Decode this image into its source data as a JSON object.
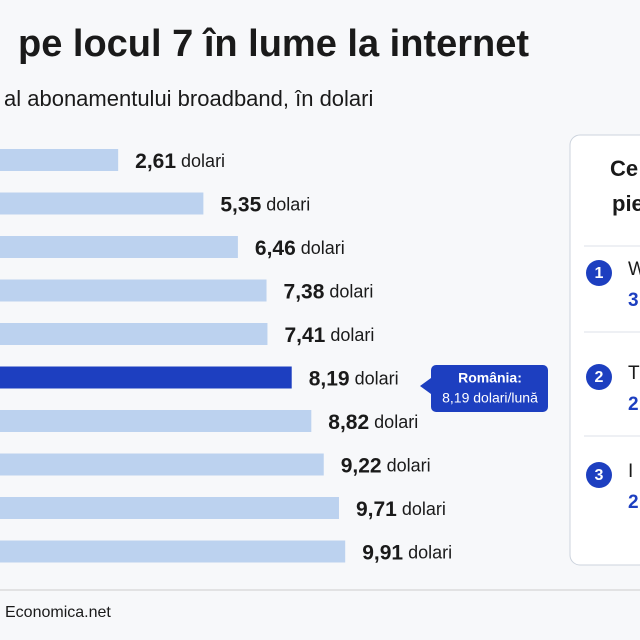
{
  "chart_data": {
    "type": "bar",
    "title": "pe locul 7 în lume la internet",
    "subtitle": "al abonamentului broadband, în dolari",
    "categories": [
      null,
      null,
      null,
      null,
      null,
      null,
      null,
      null,
      null,
      null
    ],
    "values": [
      2.61,
      5.35,
      6.46,
      7.38,
      7.41,
      8.19,
      8.82,
      9.22,
      9.71,
      9.91
    ],
    "value_labels": [
      "2,61 dolari",
      "5,35 dolari",
      "6,46 dolari",
      "7,38 dolari",
      "7,41 dolari",
      "8,19 dolari",
      "8,82 dolari",
      "9,22 dolari",
      "9,71 dolari",
      "9,91 dolari"
    ],
    "colors": [
      "#bcd2ef",
      "#bcd2ef",
      "#bcd2ef",
      "#bcd2ef",
      "#bcd2ef",
      "#1d3fc0",
      "#bcd2ef",
      "#bcd2ef",
      "#bcd2ef",
      "#bcd2ef"
    ],
    "annotation": [
      "România:",
      "8,19 dolari/lună"
    ],
    "source": "Economica.net"
  },
  "side_panel": {
    "title": [
      "Ce",
      "pie"
    ],
    "items": [
      {
        "number": "1",
        "name": "W",
        "value": "3"
      },
      {
        "number": "2",
        "name": "T",
        "value": "2"
      },
      {
        "number": "3",
        "name": "I",
        "value": "2"
      }
    ]
  }
}
